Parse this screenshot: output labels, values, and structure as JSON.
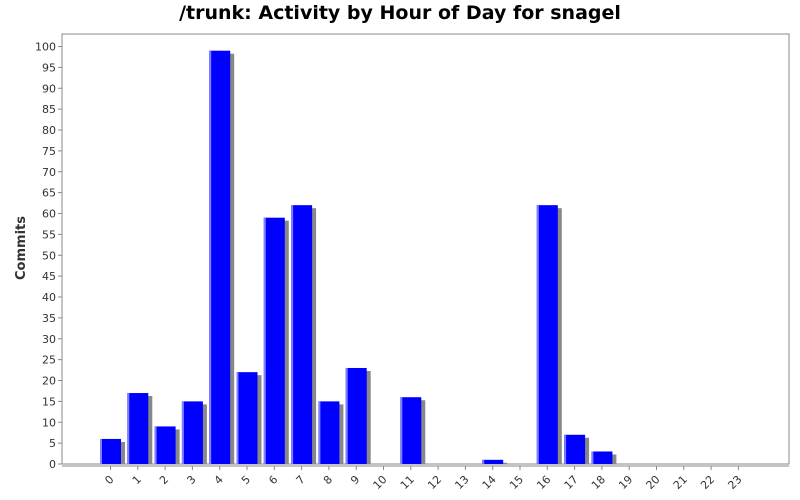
{
  "chart_data": {
    "type": "bar",
    "title": "/trunk: Activity by Hour of Day for snagel",
    "xlabel": "",
    "ylabel": "Commits",
    "categories": [
      "0",
      "1",
      "2",
      "3",
      "4",
      "5",
      "6",
      "7",
      "8",
      "9",
      "10",
      "11",
      "12",
      "13",
      "14",
      "15",
      "16",
      "17",
      "18",
      "19",
      "20",
      "21",
      "22",
      "23"
    ],
    "values": [
      6,
      17,
      9,
      15,
      99,
      22,
      59,
      62,
      15,
      23,
      0,
      16,
      0,
      0,
      1,
      0,
      62,
      7,
      3,
      0,
      0,
      0,
      0,
      0
    ],
    "ylim": [
      0,
      103
    ],
    "yticks": [
      0,
      5,
      10,
      15,
      20,
      25,
      30,
      35,
      40,
      45,
      50,
      55,
      60,
      65,
      70,
      75,
      80,
      85,
      90,
      95,
      100
    ],
    "grid": false,
    "legend": "none",
    "colors": {
      "bar": "#0000ff",
      "bar_highlight": "#8080ff",
      "shadow": "#888888",
      "axis": "#888888"
    }
  }
}
